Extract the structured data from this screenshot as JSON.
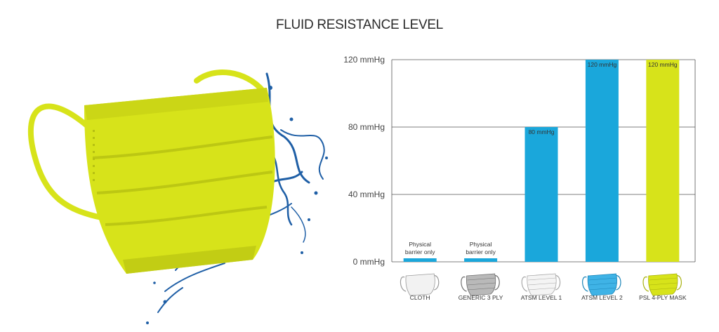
{
  "title": "FLUID RESISTANCE LEVEL",
  "colors": {
    "blue": "#1aa7db",
    "lime": "#d7e31a",
    "grid": "#555555",
    "water": "#1f5fa6"
  },
  "chart_data": {
    "type": "bar",
    "title": "FLUID RESISTANCE LEVEL",
    "xlabel": "",
    "ylabel": "",
    "ylim": [
      0,
      120
    ],
    "yticks": [
      {
        "value": 0,
        "label": "0 mmHg"
      },
      {
        "value": 40,
        "label": "40 mmHg"
      },
      {
        "value": 80,
        "label": "80 mmHg"
      },
      {
        "value": 120,
        "label": "120 mmHg"
      }
    ],
    "grid": true,
    "categories": [
      "CLOTH",
      "GENERIC 3 PLY",
      "ATSM LEVEL 1",
      "ATSM LEVEL 2",
      "PSL 4-PLY MASK"
    ],
    "values": [
      0,
      0,
      80,
      120,
      120
    ],
    "bar_labels": [
      "",
      "",
      "80 mmHg",
      "120 mmHg",
      "120 mmHg"
    ],
    "notes": [
      [
        "Physical",
        "barrier only"
      ],
      [
        "Physical",
        "barrier only"
      ],
      [],
      [],
      []
    ],
    "bar_colors": [
      "#1aa7db",
      "#1aa7db",
      "#1aa7db",
      "#1aa7db",
      "#d7e31a"
    ],
    "icons": [
      "white-cloth-mask-icon",
      "gray-3ply-mask-icon",
      "white-surgical-mask-icon",
      "blue-surgical-mask-icon",
      "lime-4ply-mask-icon"
    ]
  }
}
